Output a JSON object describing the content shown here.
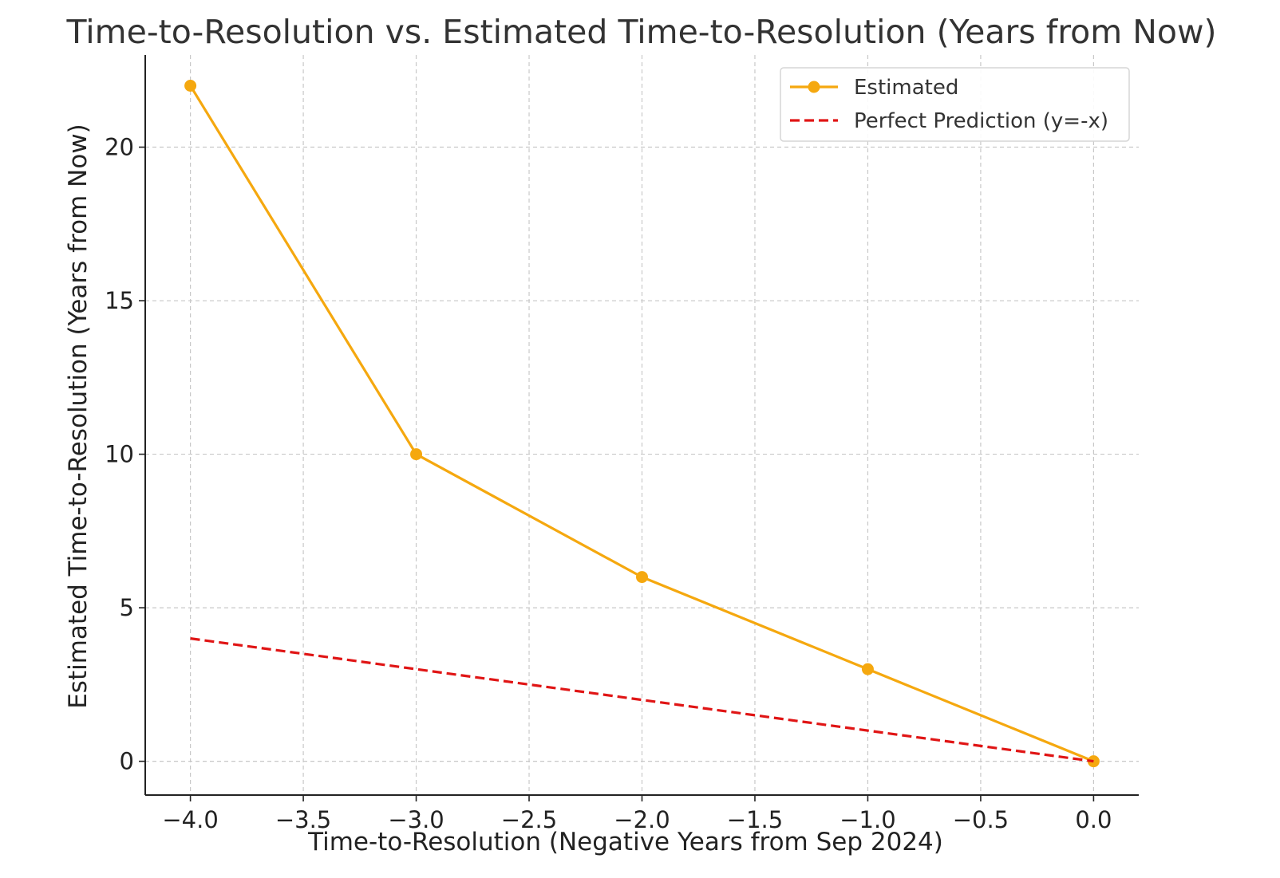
{
  "chart_data": {
    "type": "line",
    "title": "Time-to-Resolution vs. Estimated Time-to-Resolution (Years from Now)",
    "xlabel": "Time-to-Resolution (Negative Years from Sep 2024)",
    "ylabel": "Estimated Time-to-Resolution (Years from Now)",
    "xlim": [
      -4.2,
      0.2
    ],
    "ylim": [
      -1.1,
      23.0
    ],
    "x_ticks": [
      -4.0,
      -3.5,
      -3.0,
      -2.5,
      -2.0,
      -1.5,
      -1.0,
      -0.5,
      0.0
    ],
    "x_tick_labels": [
      "−4.0",
      "−3.5",
      "−3.0",
      "−2.5",
      "−2.0",
      "−1.5",
      "−1.0",
      "−0.5",
      "0.0"
    ],
    "y_ticks": [
      0,
      5,
      10,
      15,
      20
    ],
    "y_tick_labels": [
      "0",
      "5",
      "10",
      "15",
      "20"
    ],
    "grid": true,
    "legend_position": "top-right",
    "series": [
      {
        "name": "Estimated",
        "style": "solid-with-markers",
        "color": "#F5A80F",
        "x": [
          -4,
          -3,
          -2,
          -1,
          0
        ],
        "y": [
          22,
          10,
          6,
          3,
          0
        ]
      },
      {
        "name": "Perfect Prediction (y=-x)",
        "style": "dashed",
        "color": "#E01515",
        "x": [
          -4,
          -3,
          -2,
          -1,
          0
        ],
        "y": [
          4,
          3,
          2,
          1,
          0
        ]
      }
    ]
  }
}
